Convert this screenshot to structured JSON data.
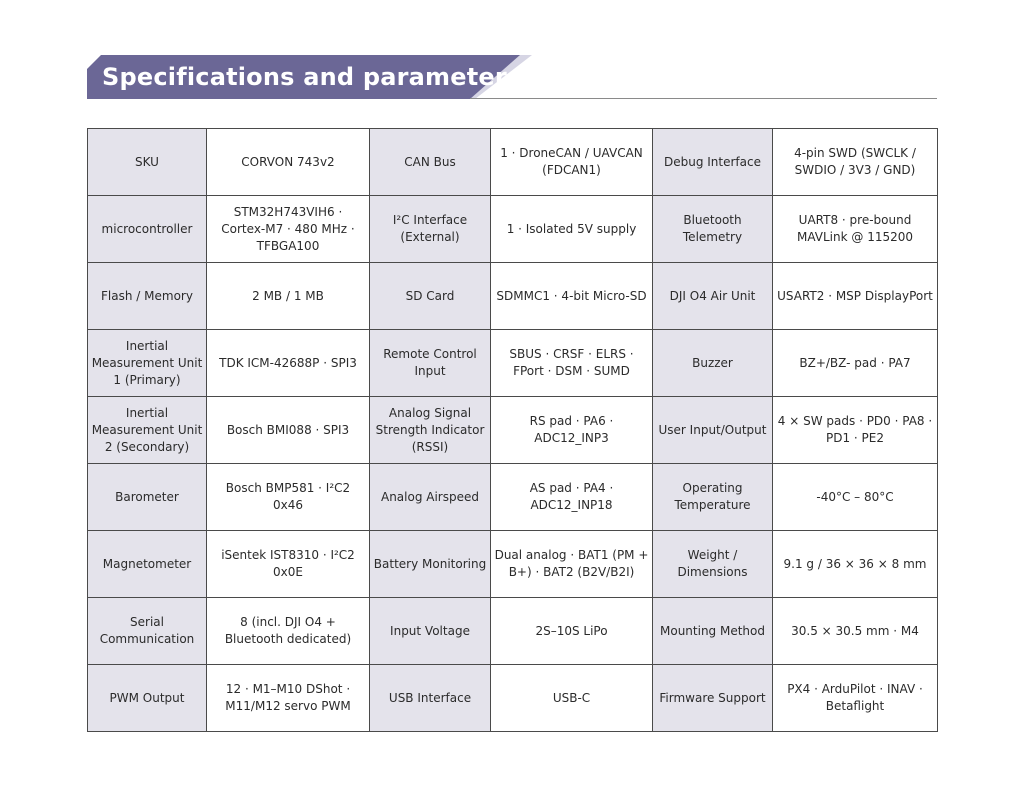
{
  "header": {
    "title": "Specifications and parameters"
  },
  "rows": [
    [
      {
        "label": "SKU",
        "value": "CORVON 743v2"
      },
      {
        "label": "CAN Bus",
        "value": "1 · DroneCAN / UAVCAN (FDCAN1)"
      },
      {
        "label": "Debug Interface",
        "value": "4-pin SWD (SWCLK / SWDIO / 3V3 / GND)"
      }
    ],
    [
      {
        "label": "microcontroller",
        "value": "STM32H743VIH6 · Cortex-M7 · 480 MHz · TFBGA100"
      },
      {
        "label": "I²C Interface (External)",
        "value": "1 · Isolated 5V supply"
      },
      {
        "label": "Bluetooth Telemetry",
        "value": "UART8 · pre-bound MAVLink @ 115200"
      }
    ],
    [
      {
        "label": "Flash / Memory",
        "value": "2 MB / 1 MB"
      },
      {
        "label": "SD Card",
        "value": "SDMMC1 · 4-bit Micro-SD"
      },
      {
        "label": "DJI O4 Air Unit",
        "value": "USART2 · MSP DisplayPort"
      }
    ],
    [
      {
        "label": "Inertial Measurement Unit 1 (Primary)",
        "value": "TDK ICM-42688P · SPI3"
      },
      {
        "label": "Remote Control Input",
        "value": "SBUS · CRSF · ELRS · FPort · DSM · SUMD"
      },
      {
        "label": "Buzzer",
        "value": "BZ+/BZ- pad · PA7"
      }
    ],
    [
      {
        "label": "Inertial Measurement Unit 2 (Secondary)",
        "value": "Bosch BMI088 · SPI3"
      },
      {
        "label": "Analog Signal Strength Indicator (RSSI)",
        "value": "RS pad · PA6 · ADC12_INP3"
      },
      {
        "label": "User Input/Output",
        "value": "4 × SW pads · PD0 · PA8 · PD1 · PE2"
      }
    ],
    [
      {
        "label": "Barometer",
        "value": "Bosch BMP581 · I²C2 0x46"
      },
      {
        "label": "Analog Airspeed",
        "value": "AS pad · PA4 · ADC12_INP18"
      },
      {
        "label": "Operating Temperature",
        "value": "-40°C – 80°C"
      }
    ],
    [
      {
        "label": "Magnetometer",
        "value": "iSentek IST8310 · I²C2 0x0E"
      },
      {
        "label": "Battery Monitoring",
        "value": "Dual analog · BAT1 (PM + B+) · BAT2 (B2V/B2I)"
      },
      {
        "label": "Weight / Dimensions",
        "value": "9.1 g / 36 × 36 × 8 mm"
      }
    ],
    [
      {
        "label": "Serial Communication",
        "value": "8 (incl. DJI O4 + Bluetooth dedicated)"
      },
      {
        "label": "Input Voltage",
        "value": "2S–10S LiPo"
      },
      {
        "label": "Mounting Method",
        "value": "30.5 × 30.5 mm · M4"
      }
    ],
    [
      {
        "label": "PWM Output",
        "value": "12 · M1–M10 DShot · M11/M12 servo PWM"
      },
      {
        "label": "USB Interface",
        "value": "USB-C"
      },
      {
        "label": "Firmware Support",
        "value": "PX4 · ArduPilot · INAV · Betaflight"
      }
    ]
  ]
}
